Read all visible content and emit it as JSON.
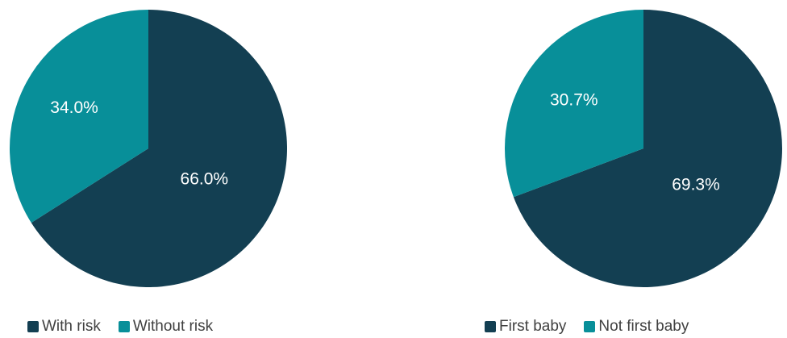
{
  "chart_data": [
    {
      "type": "pie",
      "categories": [
        "With risk",
        "Without risk"
      ],
      "values": [
        66.0,
        34.0
      ],
      "data_labels": [
        "66.0%",
        "34.0%"
      ],
      "colors": [
        "#133f52",
        "#088f99"
      ],
      "start_angle": "12 o'clock, clockwise",
      "legend_position": "bottom"
    },
    {
      "type": "pie",
      "categories": [
        "First baby",
        "Not first baby"
      ],
      "values": [
        69.3,
        30.7
      ],
      "data_labels": [
        "69.3%",
        "30.7%"
      ],
      "colors": [
        "#133f52",
        "#088f99"
      ],
      "start_angle": "12 o'clock, clockwise",
      "legend_position": "bottom"
    }
  ]
}
